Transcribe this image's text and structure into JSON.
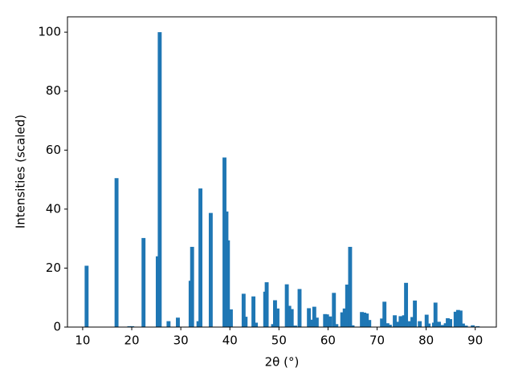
{
  "chart_data": {
    "type": "bar",
    "xlabel": "2θ (°)",
    "ylabel": "Intensities (scaled)",
    "x": [
      10.8,
      16.9,
      19.5,
      20.1,
      22.4,
      25.3,
      25.7,
      27.5,
      29.4,
      32.0,
      32.3,
      33.6,
      34.0,
      36.1,
      38.9,
      39.3,
      39.6,
      40.2,
      42.8,
      43.2,
      44.8,
      45.3,
      47.2,
      47.5,
      48.8,
      49.2,
      49.7,
      51.6,
      52.1,
      52.6,
      53.3,
      54.2,
      56.1,
      56.7,
      57.2,
      57.7,
      59.4,
      59.8,
      60.4,
      61.2,
      61.7,
      62.9,
      63.4,
      63.9,
      64.5,
      65.0,
      66.9,
      67.4,
      67.9,
      68.4,
      71.0,
      71.5,
      72.1,
      72.6,
      73.6,
      74.3,
      74.8,
      75.5,
      75.9,
      76.7,
      77.2,
      77.7,
      78.7,
      80.1,
      80.5,
      81.6,
      81.9,
      82.6,
      83.4,
      84.0,
      84.4,
      84.9,
      86.0,
      86.5,
      87.0,
      87.5,
      88.1,
      89.5,
      90.5
    ],
    "values": [
      20.8,
      50.5,
      0.3,
      0.3,
      30.2,
      24,
      100,
      2,
      3.2,
      15.7,
      27.2,
      2,
      47,
      38.7,
      57.5,
      39.2,
      29.4,
      6,
      11.3,
      3.5,
      10.4,
      1.5,
      12,
      15.2,
      1,
      9.1,
      6.3,
      14.5,
      7.2,
      6.1,
      0.5,
      12.9,
      6.4,
      2.5,
      6.9,
      3.2,
      4.4,
      4.3,
      3.6,
      11.6,
      1,
      5,
      6.3,
      14.4,
      27.2,
      0.6,
      5.1,
      4.9,
      4.6,
      2.4,
      2.9,
      8.6,
      1.3,
      0.8,
      4,
      1.8,
      3.7,
      4,
      15,
      2,
      3.4,
      9,
      2,
      4.2,
      1.2,
      1.5,
      8.3,
      1.8,
      0.7,
      1.3,
      3,
      2.7,
      5.2,
      5.8,
      5.6,
      1.2,
      0.5,
      0.6,
      0.3
    ],
    "color": "#1f77b4",
    "xlim": [
      6.9,
      94.3
    ],
    "xticks": [
      10,
      20,
      30,
      40,
      50,
      60,
      70,
      80,
      90
    ],
    "ylim": [
      0,
      105.2
    ],
    "yticks": [
      0,
      20,
      40,
      60,
      80,
      100
    ]
  }
}
